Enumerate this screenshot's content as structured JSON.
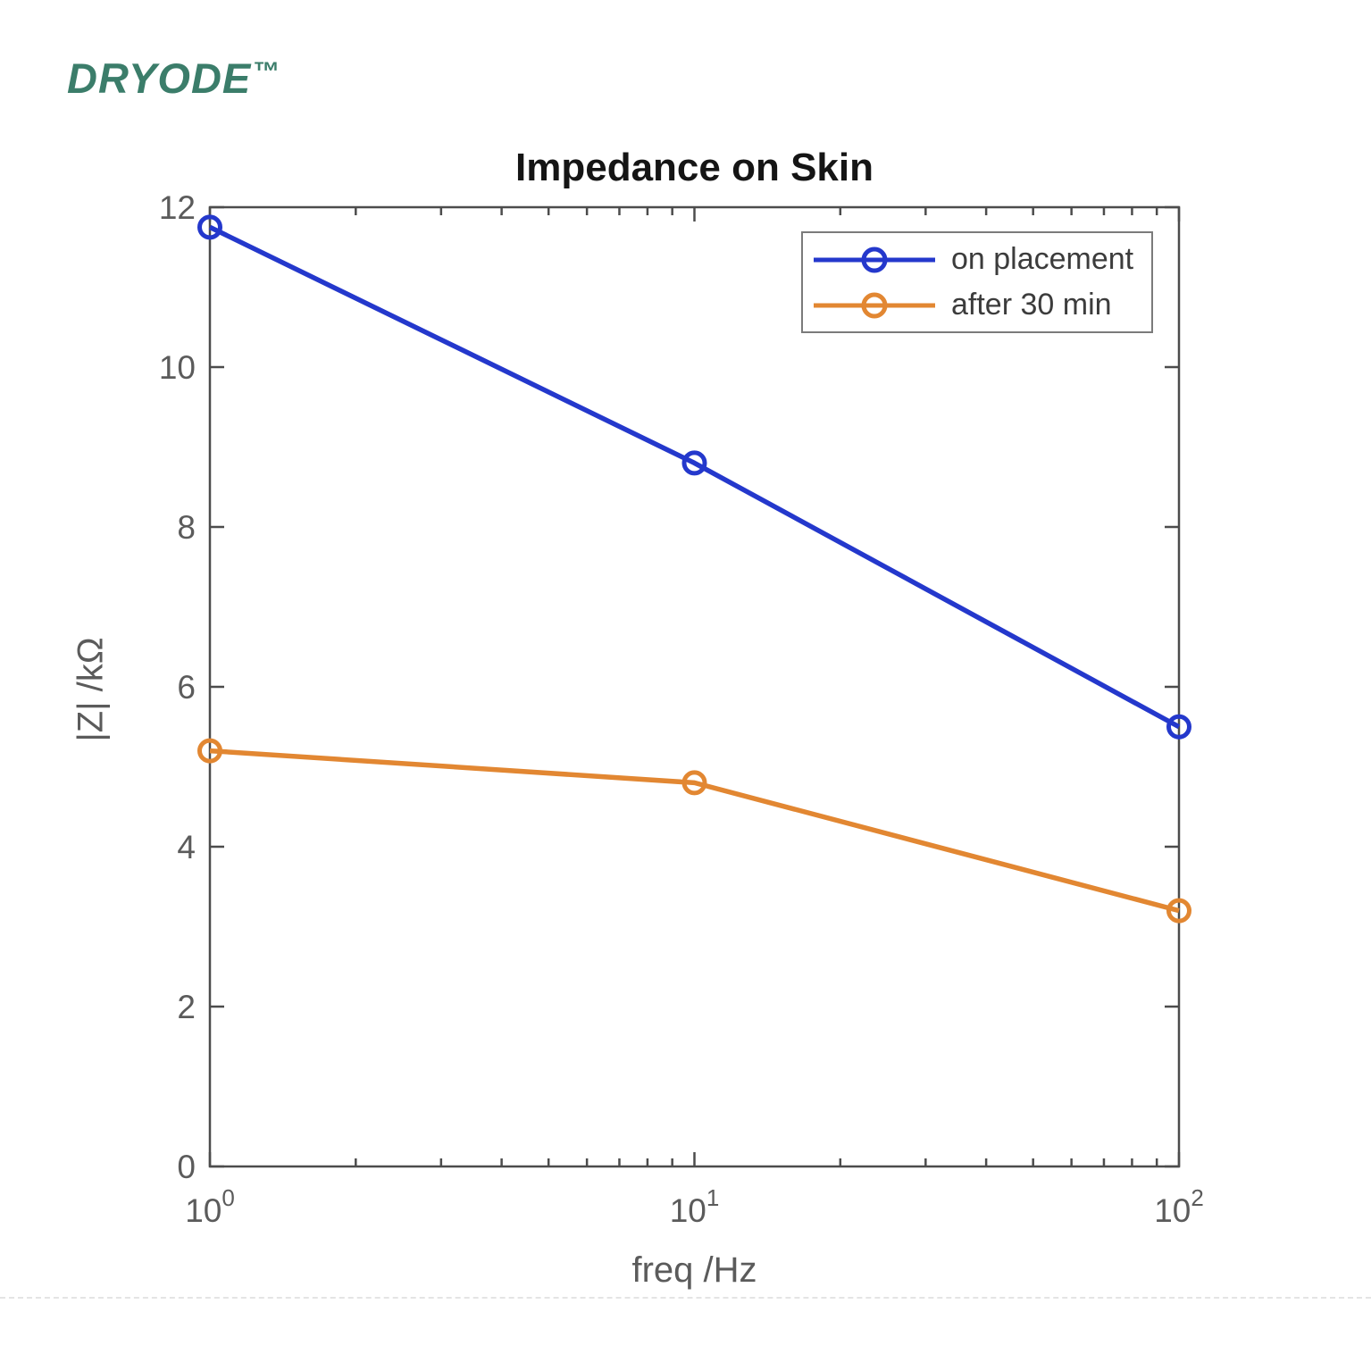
{
  "logo": {
    "text": "DRYODE",
    "tm": "™",
    "color": "#3B7D6A"
  },
  "chart_data": {
    "type": "line",
    "title": "Impedance on Skin",
    "xlabel": "freq /Hz",
    "ylabel": "|Z| /kΩ",
    "x_scale": "log10",
    "x": [
      1,
      10,
      100
    ],
    "xlim": [
      1,
      100
    ],
    "ylim": [
      0,
      12
    ],
    "yticks": [
      0,
      2,
      4,
      6,
      8,
      10,
      12
    ],
    "xticks": [
      {
        "base": "10",
        "exp": "0",
        "value": 1
      },
      {
        "base": "10",
        "exp": "1",
        "value": 10
      },
      {
        "base": "10",
        "exp": "2",
        "value": 100
      }
    ],
    "x_minor_ticks": [
      2,
      3,
      4,
      5,
      6,
      7,
      8,
      9,
      20,
      30,
      40,
      50,
      60,
      70,
      80,
      90
    ],
    "grid": false,
    "legend_position": "upper-right",
    "marker": "open-circle",
    "series": [
      {
        "name": "on placement",
        "color": "#2438CC",
        "values": [
          11.75,
          8.8,
          5.5
        ]
      },
      {
        "name": "after 30 min",
        "color": "#E28732",
        "values": [
          5.2,
          4.8,
          3.2
        ]
      }
    ],
    "axis_color": "#4C4C4C",
    "tick_label_color": "#5B5B5B",
    "title_color": "#151515",
    "legend_text_color": "#3C3C3C"
  }
}
